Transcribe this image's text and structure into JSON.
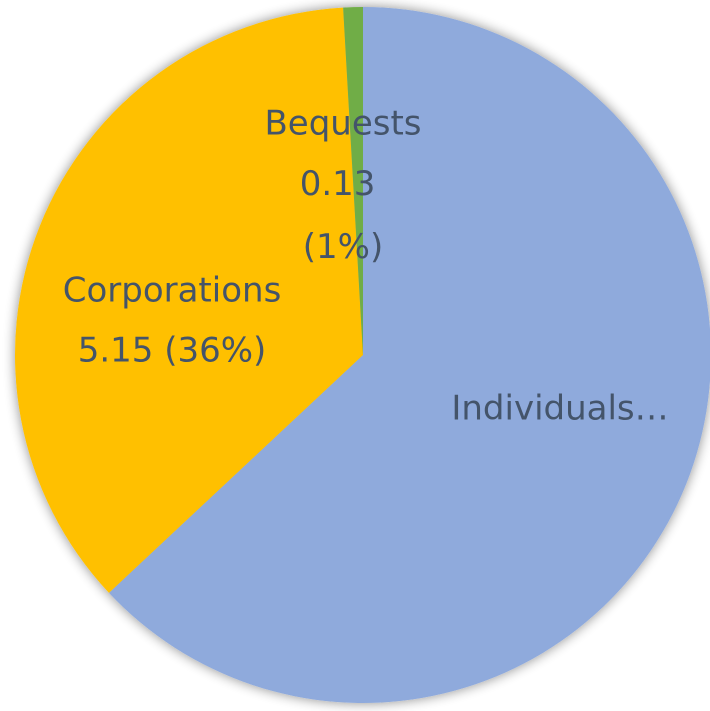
{
  "chart_data": {
    "type": "pie",
    "categories": [
      "Individuals…",
      "Corporations",
      "Bequests"
    ],
    "values": [
      9.0,
      5.15,
      0.13
    ],
    "value_labels": [
      null,
      "5.15 (36%)",
      "0.13 (1%)"
    ],
    "colors": [
      "#8faadc",
      "#ffc000",
      "#70ad47"
    ]
  }
}
